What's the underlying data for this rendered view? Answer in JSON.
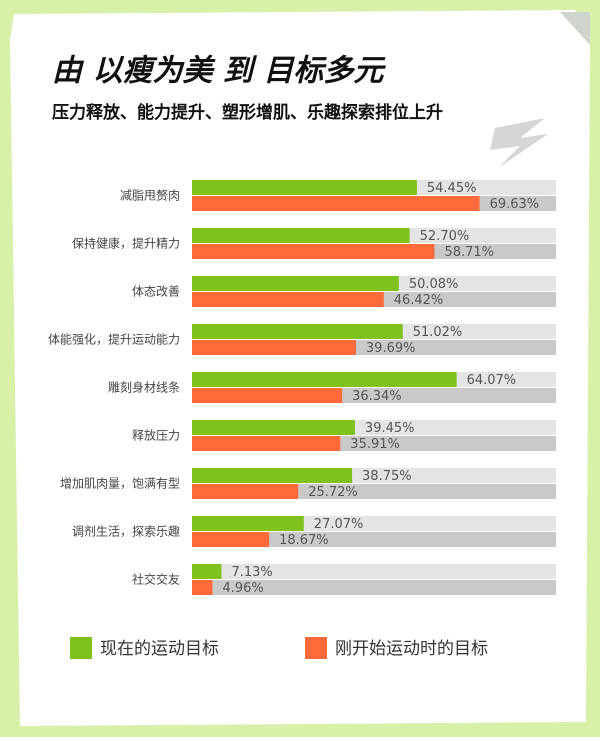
{
  "chart_data": {
    "type": "hbar",
    "title": "由 以瘦为美 到 目标多元",
    "subtitle": "压力释放、能力提升、塑形增肌、乐趣探索排位上升",
    "categories": [
      "减脂甩赘肉",
      "保持健康，提升精力",
      "体态改善",
      "体能强化，提升运动能力",
      "雕刻身材线条",
      "释放压力",
      "增加肌肉量，饱满有型",
      "调剂生活，探索乐趣",
      "社交交友"
    ],
    "series": [
      {
        "name": "现在的运动目标",
        "color": "#7dc21e",
        "values": [
          54.45,
          52.7,
          50.08,
          51.02,
          64.07,
          39.45,
          38.75,
          27.07,
          7.13
        ],
        "value_labels": [
          "54.45%",
          "52.70%",
          "50.08%",
          "51.02%",
          "64.07%",
          "39.45%",
          "38.75%",
          "27.07%",
          "7.13%"
        ]
      },
      {
        "name": "刚开始运动时的目标",
        "color": "#ff6a3a",
        "values": [
          69.63,
          58.71,
          46.42,
          39.69,
          36.34,
          35.91,
          25.72,
          18.67,
          4.96
        ],
        "value_labels": [
          "69.63%",
          "58.71%",
          "46.42%",
          "39.69%",
          "36.34%",
          "35.91%",
          "25.72%",
          "18.67%",
          "4.96%"
        ]
      }
    ],
    "track_colors": [
      "#e4e4e4",
      "#c9c9c9"
    ],
    "legend": "bottom"
  }
}
